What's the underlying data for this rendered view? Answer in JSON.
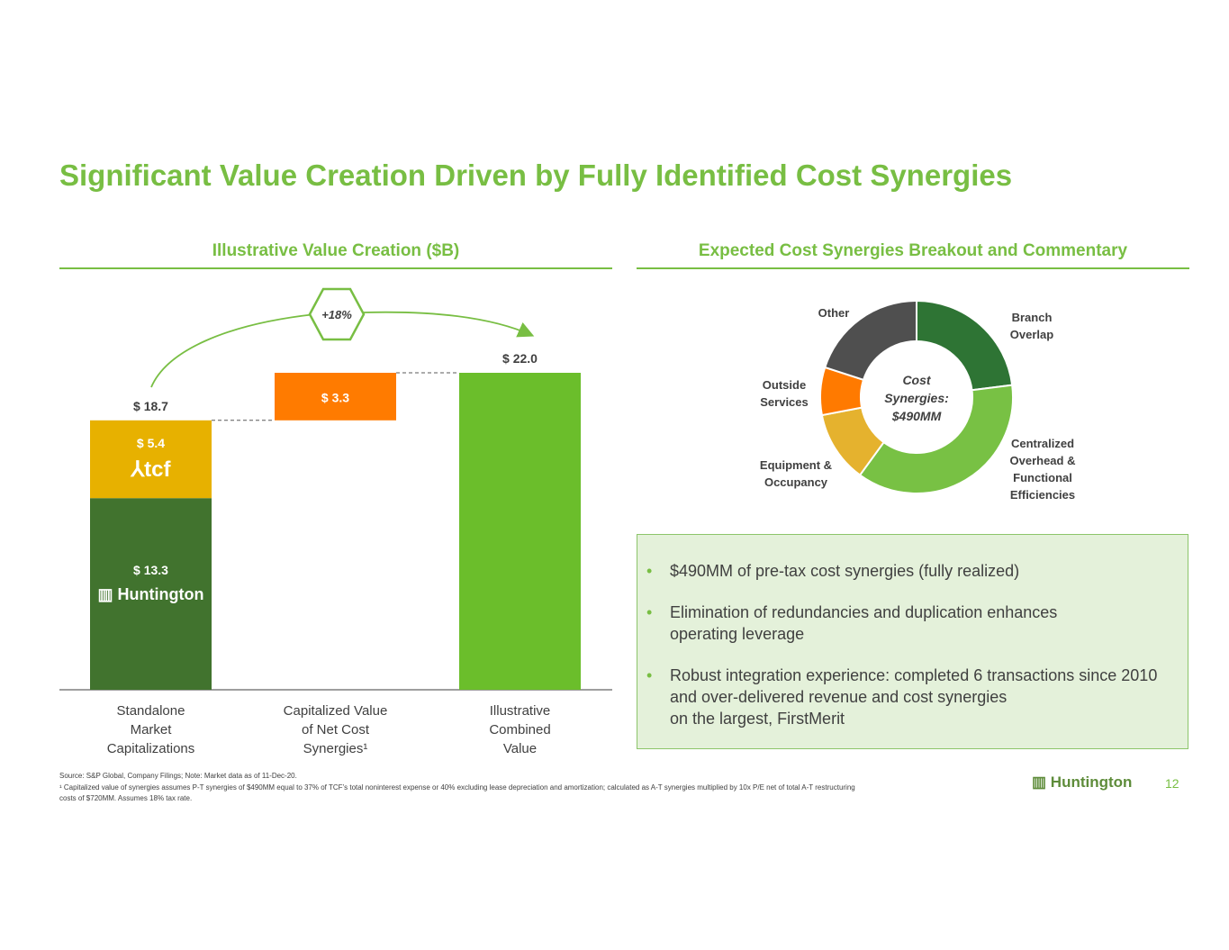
{
  "title": "Significant Value Creation Driven by Fully Identified Cost Synergies",
  "left_header": "Illustrative Value Creation ($B)",
  "right_header": "Expected Cost Synergies Breakout and Commentary",
  "chart_data": [
    {
      "type": "bar",
      "title": "Illustrative Value Creation ($B)",
      "categories": [
        "Standalone Market Capitalizations",
        "Capitalized Value of Net Cost Synergies¹",
        "Illustrative Combined Value"
      ],
      "category_lines": [
        [
          "Standalone",
          "Market",
          "Capitalizations"
        ],
        [
          "Capitalized Value",
          "of Net Cost",
          "Synergies¹"
        ],
        [
          "Illustrative",
          "Combined",
          "Value"
        ]
      ],
      "stacked": true,
      "waterfall": true,
      "series": [
        {
          "name": "Huntington",
          "values": [
            13.3,
            null,
            null
          ],
          "base": [
            0,
            null,
            null
          ],
          "label": "$ 13.3",
          "color": "#41732E"
        },
        {
          "name": "tcf",
          "values": [
            5.4,
            null,
            null
          ],
          "base": [
            13.3,
            null,
            null
          ],
          "label": "$ 5.4",
          "color": "#E7B100"
        },
        {
          "name": "",
          "values": [
            null,
            3.3,
            null
          ],
          "base": [
            null,
            18.7,
            null
          ],
          "label": "$ 3.3",
          "color": "#FF7B00"
        },
        {
          "name": "",
          "values": [
            null,
            null,
            22.0
          ],
          "base": [
            null,
            null,
            0
          ],
          "color": "#6BBE2B"
        }
      ],
      "totals": [
        {
          "index": 0,
          "label": "$ 18.7",
          "value": 18.7
        },
        {
          "index": 2,
          "label": "$ 22.0",
          "value": 22.0
        }
      ],
      "annotation": "+18%",
      "ylim": [
        0,
        22.0
      ]
    },
    {
      "type": "pie",
      "donut": true,
      "center_label": [
        "Cost",
        "Synergies:",
        "$490MM"
      ],
      "slices": [
        {
          "name": "Branch Overlap",
          "lines": [
            "Branch",
            "Overlap"
          ],
          "value": 23,
          "color": "#2E7434"
        },
        {
          "name": "Centralized Overhead & Functional Efficiencies",
          "lines": [
            "Centralized",
            "Overhead &",
            "Functional",
            "Efficiencies"
          ],
          "value": 37,
          "color": "#78C144"
        },
        {
          "name": "Equipment & Occupancy",
          "lines": [
            "Equipment &",
            "Occupancy"
          ],
          "value": 12,
          "color": "#E5B22E"
        },
        {
          "name": "Outside Services",
          "lines": [
            "Outside",
            "Services"
          ],
          "value": 8,
          "color": "#FF7A00"
        },
        {
          "name": "Other",
          "lines": [
            "Other"
          ],
          "value": 20,
          "color": "#4F4F4F"
        }
      ]
    }
  ],
  "logos": {
    "tcf": "tcf",
    "huntington": "Huntington"
  },
  "bullets": [
    {
      "lines": [
        "$490MM of pre-tax cost synergies (fully realized)"
      ]
    },
    {
      "lines": [
        "Elimination of redundancies and duplication enhances",
        "operating leverage"
      ]
    },
    {
      "lines": [
        "Robust integration experience: completed 6 transactions since 2010",
        "and over-delivered revenue and cost synergies",
        "on the largest, FirstMerit"
      ]
    }
  ],
  "footnotes": [
    "Source:  S&P Global, Company Filings;  Note:  Market data as of 11-Dec-20.",
    "¹ Capitalized value of synergies assumes P-T synergies of $490MM equal to 37% of TCF’s total noninterest expense or 40% excluding lease depreciation and amortization; calculated as A-T synergies multiplied by 10x P/E net of total A-T restructuring",
    "costs of $720MM. Assumes 18% tax rate."
  ],
  "footer_logo": "Huntington",
  "page_number": "12",
  "colors": {
    "brand_green": "#78BE43",
    "dark_green": "#41732E",
    "gold": "#E7B100",
    "orange": "#FF7B00",
    "bright_green": "#6BBE2B"
  },
  "icons": {
    "bullet": "•"
  }
}
